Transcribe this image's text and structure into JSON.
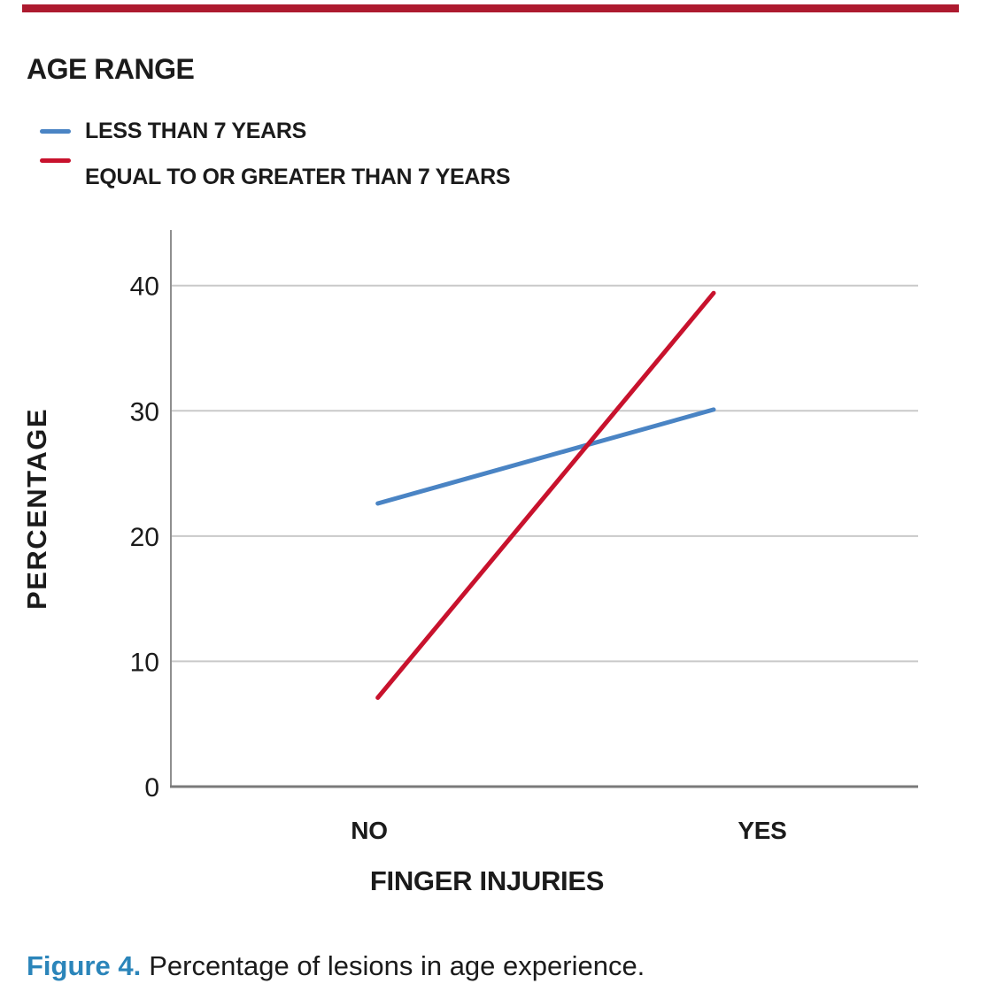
{
  "chart_data": {
    "type": "line",
    "title": "AGE RANGE",
    "categories": [
      "NO",
      "YES"
    ],
    "series": [
      {
        "name": "LESS THAN 7 YEARS",
        "color": "#4A84C4",
        "values": [
          22.6,
          30.1
        ]
      },
      {
        "name": "EQUAL TO OR GREATER THAN 7 YEARS",
        "color": "#C8122D",
        "values": [
          7.1,
          39.4
        ]
      }
    ],
    "xlabel": "FINGER INJURIES",
    "ylabel": "PERCENTAGE",
    "ylim": [
      0,
      45
    ],
    "yticks": [
      0,
      10,
      20,
      30,
      40
    ],
    "grid": true,
    "legend_position": "top-left"
  },
  "caption": {
    "label": "Figure 4.",
    "text": "Percentage of lesions in age experience."
  },
  "colors": {
    "top_bar": "#AD1A2F",
    "caption_accent": "#2B85BA",
    "gridline": "#C9C9C9",
    "axis_y": "#8F8F8F",
    "axis_x": "#7A7A7A",
    "text": "#1B1B1B"
  }
}
